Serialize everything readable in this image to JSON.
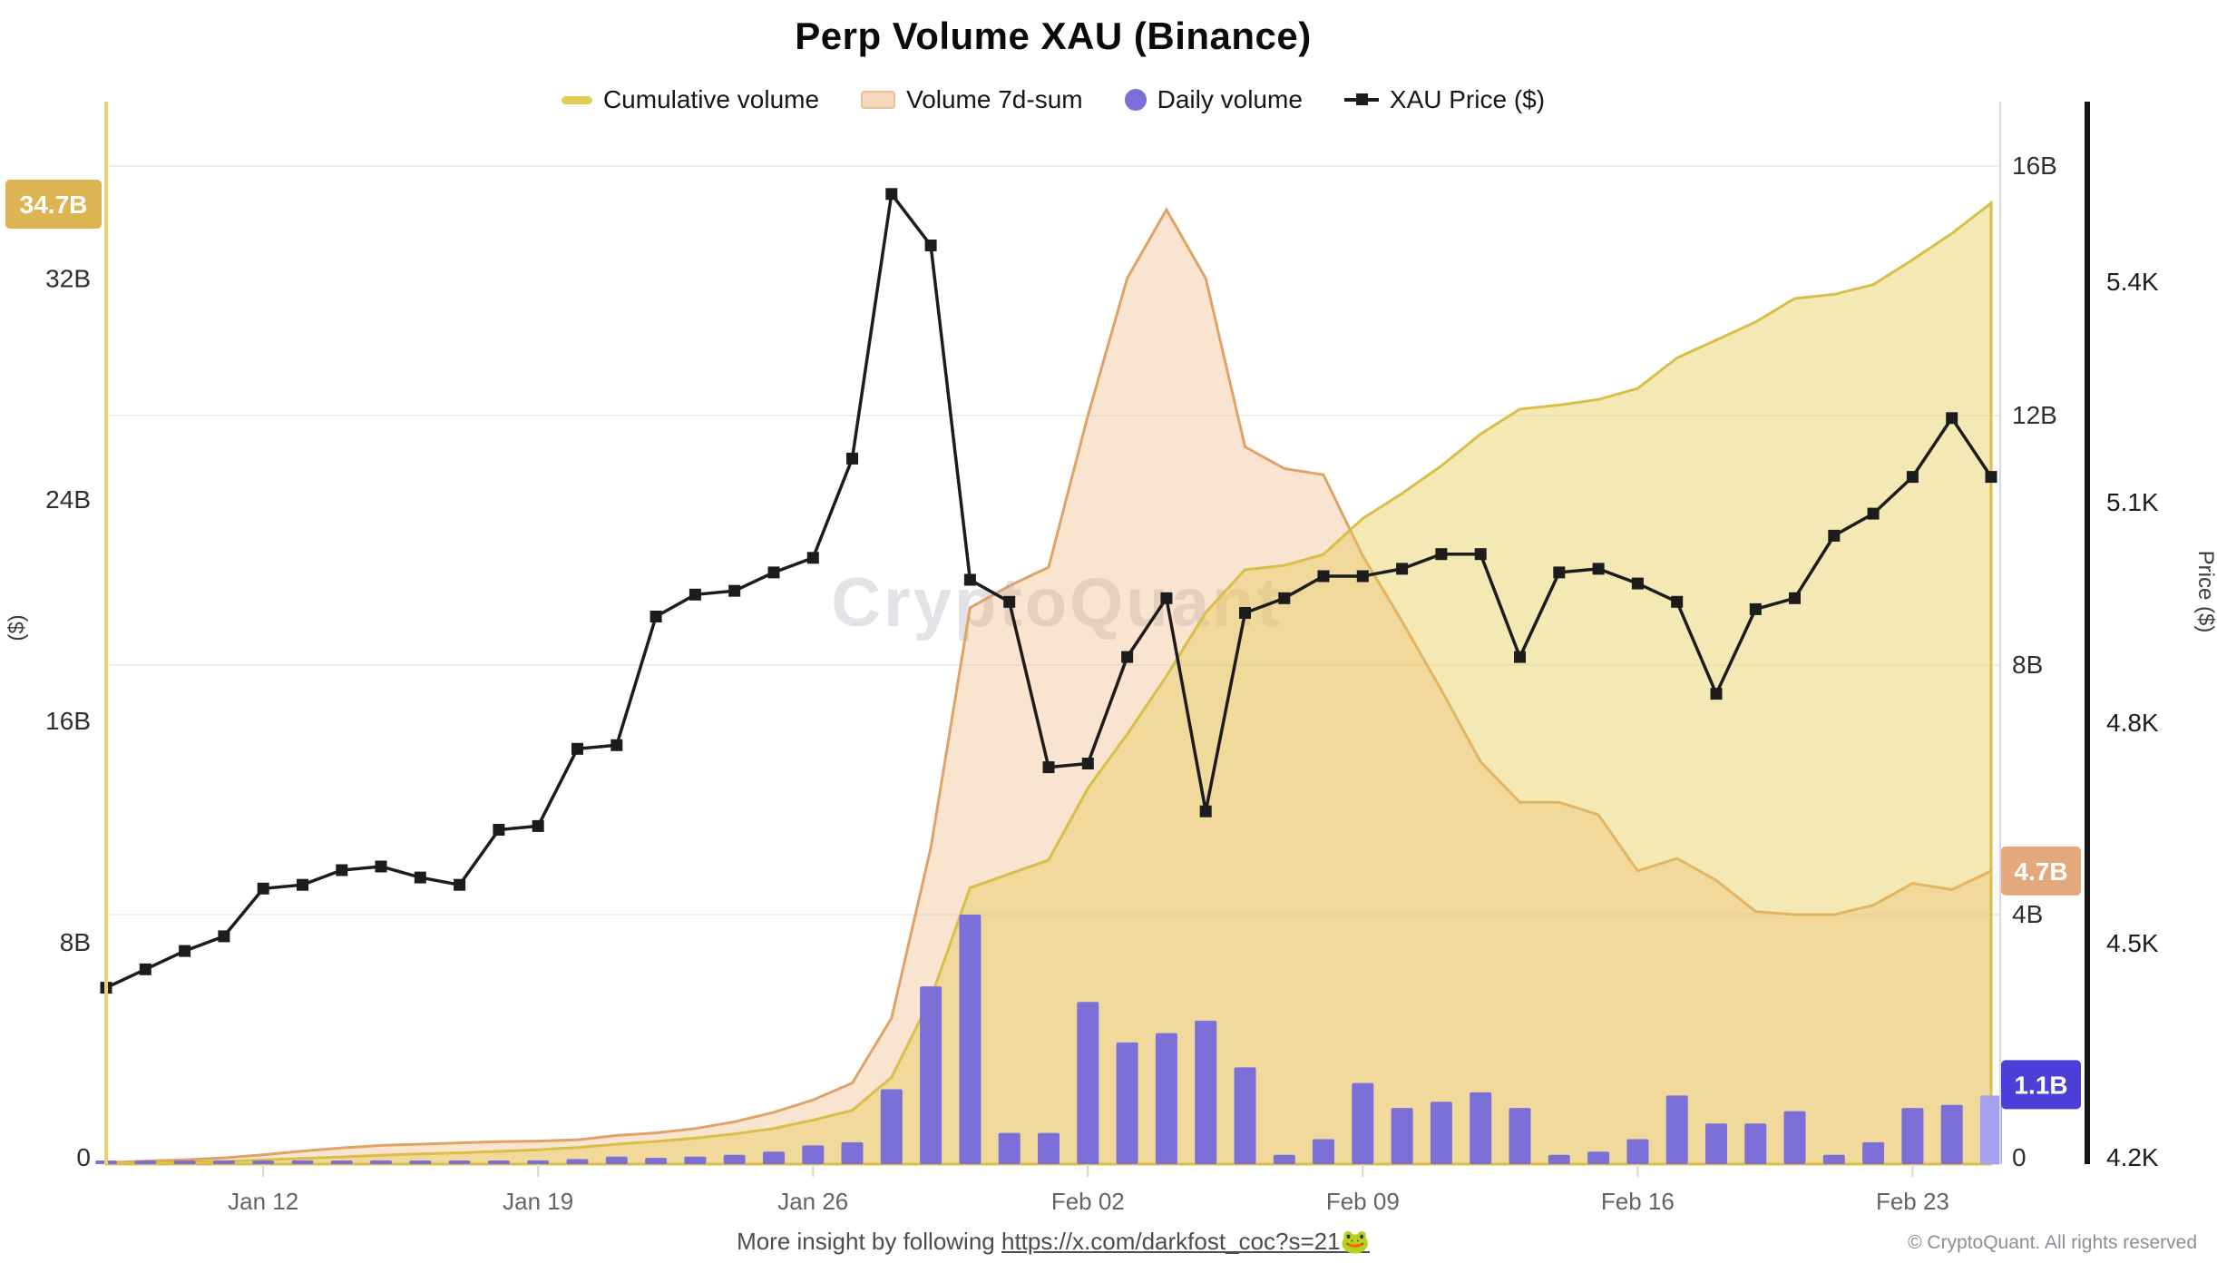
{
  "header": {
    "title": "Perp Volume XAU (Binance)"
  },
  "legend": {
    "items": [
      {
        "label": "Cumulative volume",
        "swatch": "line",
        "color": "#e4cc52"
      },
      {
        "label": "Volume 7d-sum",
        "swatch": "band",
        "color": "#f2cda4"
      },
      {
        "label": "Daily volume",
        "swatch": "dot",
        "color": "#7c6fd8"
      },
      {
        "label": "XAU Price ($)",
        "swatch": "markerline",
        "color": "#1c1c1c"
      }
    ]
  },
  "watermark": {
    "text": "CryptoQuant"
  },
  "badges": {
    "cumulative_latest": {
      "label": "34.7B",
      "value": 34.7,
      "color": "#dcb452",
      "axis": "left_volume"
    },
    "sevenday_latest": {
      "label": "4.7B",
      "value": 4.7,
      "color": "#e3a87b",
      "axis": "right_volume"
    },
    "daily_latest": {
      "label": "1.1B",
      "value": 1.1,
      "color": "#4b3fd8",
      "axis": "right_volume"
    }
  },
  "axes": {
    "left_volume": {
      "title": "($)",
      "tick_labels": [
        "0",
        "8B",
        "16B",
        "24B",
        "32B"
      ],
      "tick_values": [
        0,
        8,
        16,
        24,
        32
      ],
      "range": [
        0,
        34.7
      ]
    },
    "right_volume": {
      "tick_labels": [
        "0",
        "4B",
        "8B",
        "12B",
        "16B"
      ],
      "tick_values": [
        0,
        4,
        8,
        12,
        16
      ],
      "range": [
        0,
        16
      ]
    },
    "right_price": {
      "title": "Price ($)",
      "tick_labels": [
        "4.2K",
        "4.5K",
        "4.8K",
        "5.1K",
        "5.4K"
      ],
      "tick_values": [
        4200,
        4500,
        4800,
        5100,
        5400
      ],
      "range": [
        4200,
        5560
      ]
    },
    "x": {
      "tick_labels": [
        "Jan 12",
        "Jan 19",
        "Jan 26",
        "Feb 02",
        "Feb 09",
        "Feb 16",
        "Feb 23"
      ],
      "tick_indices": [
        4,
        11,
        18,
        25,
        32,
        39,
        46
      ]
    }
  },
  "footer": {
    "center_prefix": "More insight by following ",
    "link_text": "https://x.com/darkfost_coc?s=21",
    "link_emoji": "🐸",
    "copyright": "© CryptoQuant. All rights reserved"
  },
  "chart_data": {
    "type": [
      "area",
      "area",
      "bar",
      "line"
    ],
    "grid": "horizontal, on right volume axis ticks",
    "legend_position": "top",
    "x_dates": [
      "Jan 08",
      "Jan 09",
      "Jan 10",
      "Jan 11",
      "Jan 12",
      "Jan 13",
      "Jan 14",
      "Jan 15",
      "Jan 16",
      "Jan 17",
      "Jan 18",
      "Jan 19",
      "Jan 20",
      "Jan 21",
      "Jan 22",
      "Jan 23",
      "Jan 24",
      "Jan 25",
      "Jan 26",
      "Jan 27",
      "Jan 28",
      "Jan 29",
      "Jan 30",
      "Jan 31",
      "Feb 01",
      "Feb 02",
      "Feb 03",
      "Feb 04",
      "Feb 05",
      "Feb 06",
      "Feb 07",
      "Feb 08",
      "Feb 09",
      "Feb 10",
      "Feb 11",
      "Feb 12",
      "Feb 13",
      "Feb 14",
      "Feb 15",
      "Feb 16",
      "Feb 17",
      "Feb 18",
      "Feb 19",
      "Feb 20",
      "Feb 21",
      "Feb 22",
      "Feb 23",
      "Feb 24",
      "Feb 25"
    ],
    "series": [
      {
        "name": "Cumulative volume",
        "type": "area",
        "axis": "left_volume",
        "unit": "B $",
        "stroke": "#d9be48",
        "fill": "rgba(230,205,90,0.45)",
        "values": [
          0.02,
          0.05,
          0.07,
          0.1,
          0.15,
          0.21,
          0.26,
          0.32,
          0.37,
          0.41,
          0.46,
          0.52,
          0.6,
          0.72,
          0.82,
          0.94,
          1.09,
          1.29,
          1.59,
          1.94,
          3.14,
          5.99,
          9.99,
          10.49,
          10.99,
          13.59,
          15.54,
          17.64,
          19.94,
          21.49,
          21.64,
          22.04,
          23.34,
          24.24,
          25.24,
          26.39,
          27.29,
          27.44,
          27.64,
          28.04,
          29.14,
          29.79,
          30.44,
          31.29,
          31.44,
          31.79,
          32.69,
          33.64,
          34.74
        ]
      },
      {
        "name": "Volume 7d-sum",
        "type": "area",
        "axis": "right_volume",
        "unit": "B $",
        "stroke": "#dfa268",
        "fill": "rgba(235,170,105,0.32)",
        "values": [
          0.02,
          0.05,
          0.07,
          0.1,
          0.15,
          0.21,
          0.26,
          0.3,
          0.32,
          0.34,
          0.36,
          0.37,
          0.39,
          0.46,
          0.5,
          0.57,
          0.68,
          0.83,
          1.03,
          1.3,
          2.34,
          5.07,
          8.92,
          9.27,
          9.57,
          12.0,
          14.2,
          15.3,
          14.2,
          11.5,
          11.15,
          11.05,
          9.75,
          8.7,
          7.6,
          6.45,
          5.8,
          5.8,
          5.6,
          4.7,
          4.9,
          4.55,
          4.05,
          4.0,
          4.0,
          4.15,
          4.5,
          4.4,
          4.7
        ]
      },
      {
        "name": "Daily volume",
        "type": "bar",
        "axis": "right_volume",
        "unit": "B $",
        "color": "#7c6fd8",
        "last_bar_color": "#a89ff0",
        "values": [
          0.02,
          0.03,
          0.02,
          0.03,
          0.05,
          0.06,
          0.05,
          0.06,
          0.05,
          0.04,
          0.05,
          0.06,
          0.08,
          0.12,
          0.1,
          0.12,
          0.15,
          0.2,
          0.3,
          0.35,
          1.2,
          2.85,
          4.0,
          0.5,
          0.5,
          2.6,
          1.95,
          2.1,
          2.3,
          1.55,
          0.15,
          0.4,
          1.3,
          0.9,
          1.0,
          1.15,
          0.9,
          0.15,
          0.2,
          0.4,
          1.1,
          0.65,
          0.65,
          0.85,
          0.15,
          0.35,
          0.9,
          0.95,
          1.1
        ]
      },
      {
        "name": "XAU Price ($)",
        "type": "line",
        "axis": "right_price",
        "unit": "$",
        "marker": "square",
        "color": "#1c1c1c",
        "values": [
          4440,
          4465,
          4490,
          4510,
          4575,
          4580,
          4600,
          4605,
          4590,
          4580,
          4655,
          4660,
          4765,
          4770,
          4945,
          4975,
          4980,
          5005,
          5025,
          5160,
          5520,
          5450,
          4995,
          4965,
          4740,
          4745,
          4890,
          4970,
          4680,
          4950,
          4970,
          5000,
          5000,
          5010,
          5030,
          5030,
          4890,
          5005,
          5010,
          4990,
          4965,
          4840,
          4955,
          4970,
          5055,
          5085,
          5135,
          5215,
          5135
        ]
      }
    ]
  }
}
